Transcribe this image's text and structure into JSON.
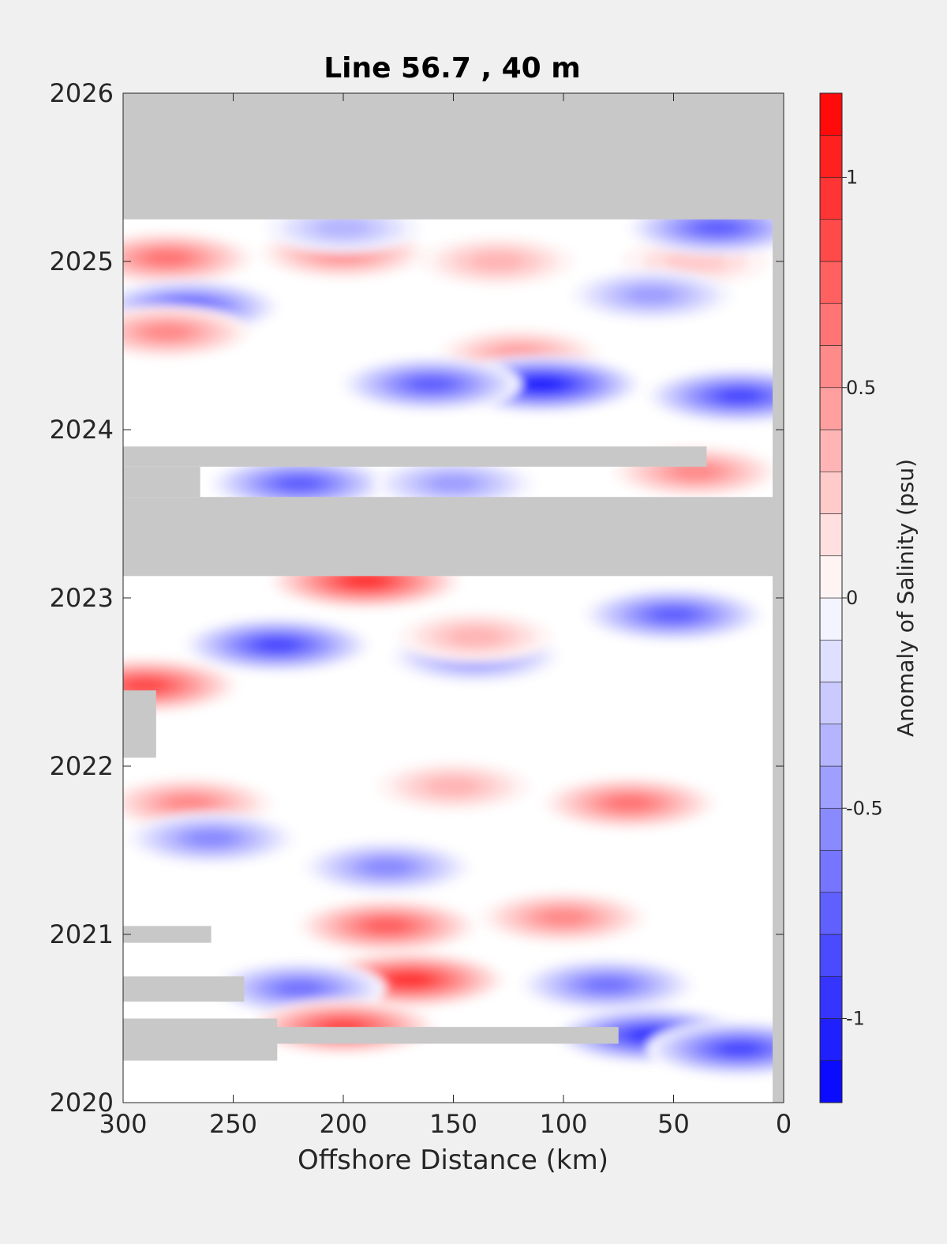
{
  "chart_data": {
    "type": "heatmap",
    "title": "Line 56.7 , 40 m",
    "xlabel": "Offshore Distance (km)",
    "ylabel": "",
    "xlim": [
      300,
      0
    ],
    "ylim": [
      2020,
      2026
    ],
    "x_ticks": [
      300,
      250,
      200,
      150,
      100,
      50,
      0
    ],
    "x_tick_labels": [
      "300",
      "250",
      "200",
      "150",
      "100",
      "50",
      "0"
    ],
    "y_ticks": [
      2020,
      2021,
      2022,
      2023,
      2024,
      2025,
      2026
    ],
    "y_tick_labels": [
      "2020",
      "2021",
      "2022",
      "2023",
      "2024",
      "2025",
      "2026"
    ],
    "colorbar": {
      "label": "Anomaly of Salinity (psu)",
      "range": [
        -1.2,
        1.2
      ],
      "levels": 24,
      "ticks": [
        -1,
        -0.5,
        0,
        0.5,
        1
      ],
      "tick_labels": [
        "-1",
        "-0.5",
        "0",
        "0.5",
        "1"
      ],
      "colormap": "blue-white-red",
      "low_color": "#0000ff",
      "high_color": "#ff0000",
      "no_data_color": "#c8c8c8"
    },
    "no_data_periods": [
      {
        "x_from": 300,
        "x_to": 0,
        "t_from": 2025.25,
        "t_to": 2026.0
      },
      {
        "x_from": 300,
        "x_to": 0,
        "t_from": 2023.13,
        "t_to": 2023.6
      },
      {
        "x_from": 300,
        "x_to": 35,
        "t_from": 2023.78,
        "t_to": 2023.9
      },
      {
        "x_from": 300,
        "x_to": 265,
        "t_from": 2023.6,
        "t_to": 2023.78
      },
      {
        "x_from": 300,
        "x_to": 75,
        "t_from": 2020.35,
        "t_to": 2020.45
      },
      {
        "x_from": 300,
        "x_to": 230,
        "t_from": 2020.25,
        "t_to": 2020.5
      },
      {
        "x_from": 300,
        "x_to": 245,
        "t_from": 2020.6,
        "t_to": 2020.75
      },
      {
        "x_from": 300,
        "x_to": 260,
        "t_from": 2020.95,
        "t_to": 2021.05
      },
      {
        "x_from": 300,
        "x_to": 285,
        "t_from": 2022.05,
        "t_to": 2022.45
      },
      {
        "x_from": 5,
        "x_to": 0,
        "t_from": 2020.0,
        "t_to": 2025.25
      }
    ],
    "anomaly_features": [
      {
        "x": 200,
        "t": 2025.05,
        "value": 0.6
      },
      {
        "x": 280,
        "t": 2025.02,
        "value": 0.7
      },
      {
        "x": 130,
        "t": 2025.0,
        "value": 0.4
      },
      {
        "x": 40,
        "t": 2025.0,
        "value": 0.3
      },
      {
        "x": 270,
        "t": 2024.73,
        "value": -0.8
      },
      {
        "x": 60,
        "t": 2024.8,
        "value": -0.5
      },
      {
        "x": 280,
        "t": 2024.58,
        "value": 0.6
      },
      {
        "x": 120,
        "t": 2024.45,
        "value": 0.5
      },
      {
        "x": 110,
        "t": 2024.27,
        "value": -1.1
      },
      {
        "x": 20,
        "t": 2024.2,
        "value": -0.9
      },
      {
        "x": 160,
        "t": 2024.27,
        "value": -0.8
      },
      {
        "x": 200,
        "t": 2025.2,
        "value": -0.4
      },
      {
        "x": 30,
        "t": 2025.2,
        "value": -0.8
      },
      {
        "x": 220,
        "t": 2023.68,
        "value": -0.8
      },
      {
        "x": 150,
        "t": 2023.68,
        "value": -0.5
      },
      {
        "x": 40,
        "t": 2023.75,
        "value": 0.6
      },
      {
        "x": 190,
        "t": 2023.1,
        "value": 1.0
      },
      {
        "x": 230,
        "t": 2022.72,
        "value": -0.9
      },
      {
        "x": 50,
        "t": 2022.9,
        "value": -0.8
      },
      {
        "x": 140,
        "t": 2022.65,
        "value": -0.6
      },
      {
        "x": 290,
        "t": 2022.48,
        "value": 0.9
      },
      {
        "x": 140,
        "t": 2022.77,
        "value": 0.4
      },
      {
        "x": 70,
        "t": 2021.78,
        "value": 0.7
      },
      {
        "x": 270,
        "t": 2021.78,
        "value": 0.6
      },
      {
        "x": 150,
        "t": 2021.88,
        "value": 0.4
      },
      {
        "x": 260,
        "t": 2021.57,
        "value": -0.6
      },
      {
        "x": 180,
        "t": 2021.4,
        "value": -0.6
      },
      {
        "x": 180,
        "t": 2021.05,
        "value": 0.8
      },
      {
        "x": 100,
        "t": 2021.1,
        "value": 0.6
      },
      {
        "x": 170,
        "t": 2020.73,
        "value": 1.0
      },
      {
        "x": 220,
        "t": 2020.68,
        "value": -0.7
      },
      {
        "x": 80,
        "t": 2020.7,
        "value": -0.7
      },
      {
        "x": 60,
        "t": 2020.4,
        "value": -1.0
      },
      {
        "x": 200,
        "t": 2020.45,
        "value": 0.9
      },
      {
        "x": 20,
        "t": 2020.32,
        "value": -0.9
      }
    ]
  }
}
